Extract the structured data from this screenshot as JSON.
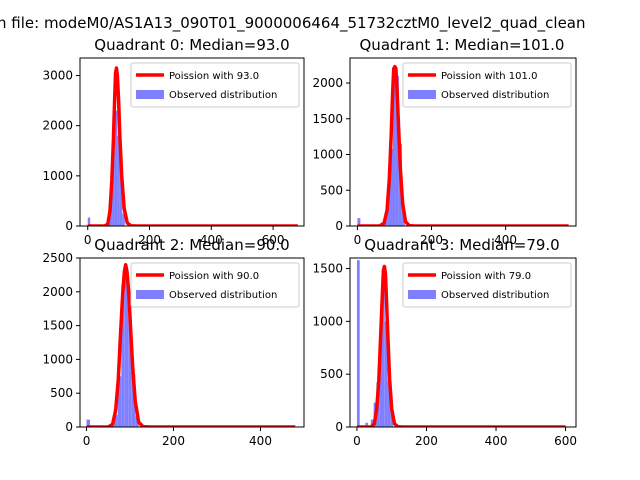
{
  "suptitle": "n file: modeM0/AS1A13_090T01_9000006464_51732cztM0_level2_quad_clean",
  "chart_data": [
    {
      "type": "bar",
      "title": "Quadrant 0: Median=93.0",
      "xlim": [
        -25,
        700
      ],
      "ylim": [
        0,
        3350
      ],
      "xticks": [
        0,
        200,
        400,
        600
      ],
      "yticks": [
        0,
        1000,
        2000,
        3000
      ],
      "legend_position": "top-right",
      "series": [
        {
          "name": "Poission with 93.0",
          "type": "line",
          "color": "#ff0000",
          "x": [
            0,
            55,
            65,
            72,
            78,
            83,
            87,
            90,
            93,
            96,
            100,
            104,
            110,
            118,
            128,
            140,
            160,
            680
          ],
          "y": [
            0,
            0,
            40,
            300,
            900,
            1700,
            2500,
            3050,
            3150,
            3000,
            2500,
            1800,
            1000,
            350,
            60,
            5,
            0,
            0
          ]
        },
        {
          "name": "Observed distribution",
          "type": "histogram",
          "color": "#8080ff",
          "bin_width": 8,
          "x": [
            0,
            64,
            72,
            80,
            88,
            96,
            104,
            112
          ],
          "y": [
            170,
            80,
            700,
            1900,
            2300,
            1800,
            1350,
            250
          ]
        }
      ]
    },
    {
      "type": "bar",
      "title": "Quadrant 1: Median=101.0",
      "xlim": [
        -20,
        590
      ],
      "ylim": [
        0,
        2350
      ],
      "xticks": [
        0,
        200,
        400
      ],
      "yticks": [
        0,
        500,
        1000,
        1500,
        2000
      ],
      "legend_position": "top-right",
      "series": [
        {
          "name": "Poission with 101.0",
          "type": "line",
          "color": "#ff0000",
          "x": [
            0,
            60,
            72,
            80,
            86,
            91,
            95,
            98,
            101,
            104,
            107,
            111,
            116,
            122,
            130,
            140,
            155,
            570
          ],
          "y": [
            0,
            0,
            40,
            220,
            650,
            1250,
            1850,
            2200,
            2230,
            2200,
            1900,
            1400,
            800,
            320,
            60,
            5,
            0,
            0
          ]
        },
        {
          "name": "Observed distribution",
          "type": "histogram",
          "color": "#8080ff",
          "bin_width": 8,
          "x": [
            0,
            64,
            72,
            80,
            88,
            96,
            104,
            112,
            120
          ],
          "y": [
            110,
            40,
            150,
            450,
            1080,
            2200,
            2100,
            1150,
            280
          ]
        }
      ]
    },
    {
      "type": "bar",
      "title": "Quadrant 2: Median=90.0",
      "xlim": [
        -15,
        500
      ],
      "ylim": [
        0,
        2500
      ],
      "xticks": [
        0,
        200,
        400
      ],
      "yticks": [
        0,
        500,
        1000,
        1500,
        2000,
        2500
      ],
      "legend_position": "top-right",
      "series": [
        {
          "name": "Poission with 90.0",
          "type": "line",
          "color": "#ff0000",
          "x": [
            0,
            50,
            60,
            67,
            73,
            78,
            83,
            87,
            90,
            93,
            97,
            101,
            106,
            112,
            120,
            130,
            145,
            480
          ],
          "y": [
            0,
            0,
            40,
            250,
            700,
            1350,
            1950,
            2300,
            2400,
            2300,
            2000,
            1500,
            900,
            380,
            70,
            5,
            0,
            0
          ]
        },
        {
          "name": "Observed distribution",
          "type": "histogram",
          "color": "#8080ff",
          "bin_width": 8,
          "x": [
            0,
            56,
            64,
            72,
            80,
            88,
            96,
            104,
            112
          ],
          "y": [
            110,
            30,
            180,
            750,
            2100,
            2350,
            1600,
            780,
            170
          ]
        }
      ]
    },
    {
      "type": "bar",
      "title": "Quadrant 3: Median=79.0",
      "xlim": [
        -20,
        630
      ],
      "ylim": [
        0,
        1600
      ],
      "xticks": [
        0,
        200,
        400,
        600
      ],
      "yticks": [
        0,
        500,
        1000,
        1500
      ],
      "legend_position": "top-right",
      "series": [
        {
          "name": "Poission with 79.0",
          "type": "line",
          "color": "#ff0000",
          "x": [
            0,
            40,
            50,
            57,
            63,
            68,
            73,
            76,
            79,
            82,
            85,
            89,
            94,
            100,
            108,
            118,
            130,
            600
          ],
          "y": [
            0,
            0,
            30,
            180,
            450,
            850,
            1250,
            1480,
            1520,
            1450,
            1200,
            850,
            450,
            170,
            30,
            3,
            0,
            0
          ]
        },
        {
          "name": "Observed distribution",
          "type": "histogram",
          "color": "#8080ff",
          "bin_width": 8,
          "x": [
            0,
            24,
            40,
            48,
            56,
            64,
            72,
            80,
            88,
            96
          ],
          "y": [
            1580,
            40,
            70,
            230,
            420,
            880,
            1360,
            1000,
            440,
            190
          ]
        }
      ]
    }
  ]
}
